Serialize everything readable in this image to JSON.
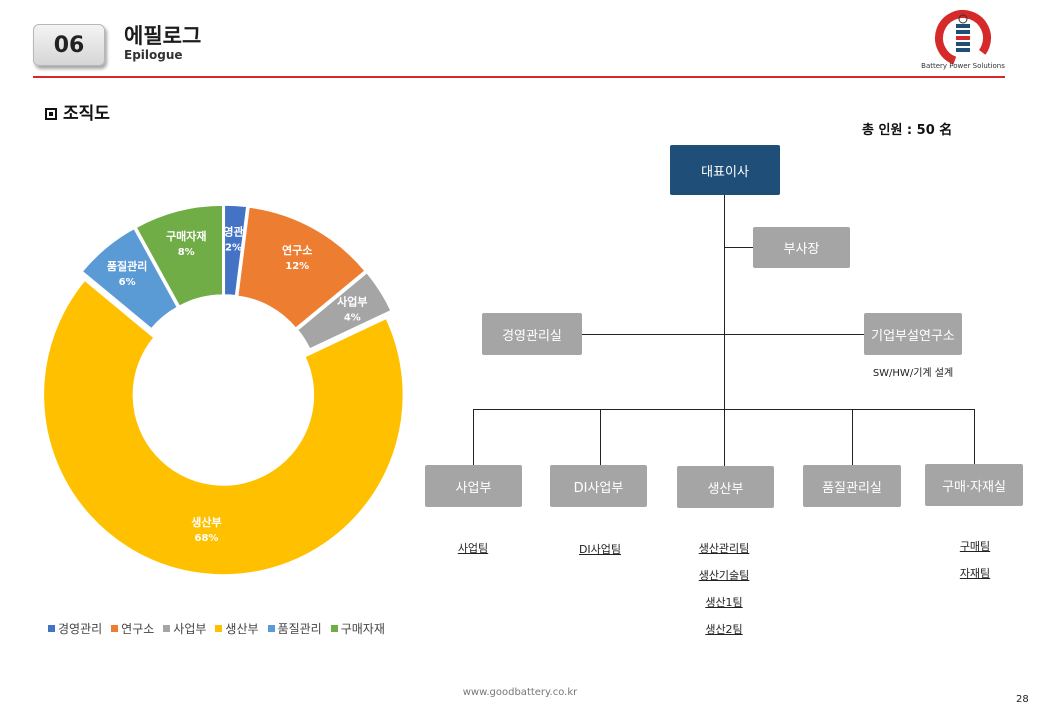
{
  "header": {
    "section_number": "06",
    "title_ko": "에필로그",
    "title_en": "Epilogue",
    "logo_text": "Battery Power Solutions",
    "accent_color": "#d62a2a"
  },
  "section_label": "조직도",
  "total_staff": "총 인원 : 50 名",
  "chart_data": {
    "type": "pie",
    "categories": [
      "경영관리",
      "연구소",
      "사업부",
      "생산부",
      "품질관리",
      "구매자재"
    ],
    "values": [
      2,
      12,
      4,
      68,
      6,
      8
    ],
    "labels": [
      "2%",
      "12%",
      "4%",
      "68%",
      "6%",
      "8%"
    ],
    "colors": [
      "#4472c4",
      "#ed7d31",
      "#a5a5a5",
      "#ffc000",
      "#5b9bd5",
      "#70ad47"
    ],
    "legend_position": "bottom",
    "donut": true
  },
  "org": {
    "ceo": "대표이사",
    "vice": "부사장",
    "mgmt": "경영관리실",
    "lab": "기업부설연구소",
    "lab_note": "SW/HW/기계 설계",
    "depts": [
      "사업부",
      "DI사업부",
      "생산부",
      "품질관리실",
      "구매·자재실"
    ],
    "teams": {
      "biz": [
        "사업팀"
      ],
      "di": [
        "DI사업팀"
      ],
      "prod": [
        "생산관리팀",
        "생산기술팀",
        "생산1팀",
        "생산2팀"
      ],
      "purchase": [
        "구매팀",
        "자재팀"
      ]
    },
    "ceo_color": "#1f4e79",
    "box_color": "#a5a5a5"
  },
  "footer": {
    "url": "www.goodbattery.co.kr",
    "page": "28"
  }
}
